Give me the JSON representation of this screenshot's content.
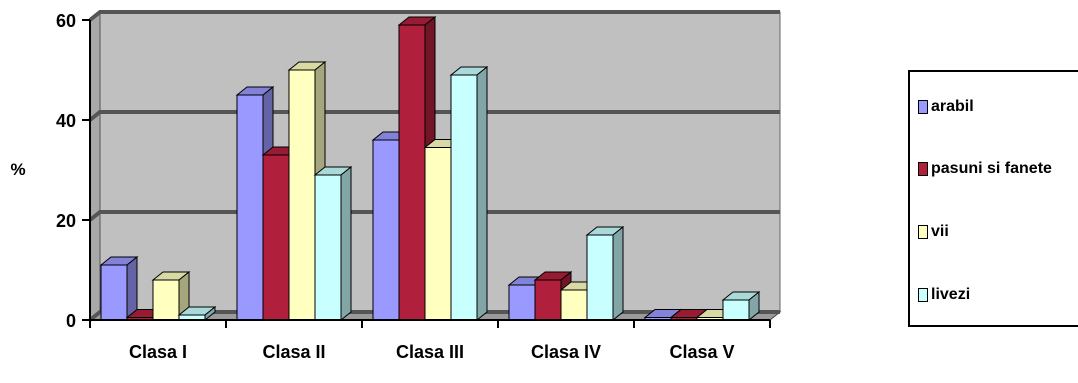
{
  "chart_data": {
    "type": "bar",
    "categories": [
      "Clasa I",
      "Clasa II",
      "Clasa III",
      "Clasa IV",
      "Clasa V"
    ],
    "series": [
      {
        "name": "arabil",
        "color": "#9999ff",
        "values": [
          11,
          45,
          36,
          7,
          0.5
        ]
      },
      {
        "name": "pasuni si fanete",
        "color": "#b0203c",
        "values": [
          0.5,
          33,
          59,
          8,
          0.5
        ]
      },
      {
        "name": "vii",
        "color": "#ffffc0",
        "values": [
          8,
          50,
          34.5,
          6,
          0.5
        ]
      },
      {
        "name": "livezi",
        "color": "#c8ffff",
        "values": [
          1,
          29,
          49,
          17,
          4
        ]
      }
    ],
    "title": "",
    "xlabel": "",
    "ylabel": "%",
    "ylim": [
      0,
      60
    ],
    "yticks": [
      0,
      20,
      40,
      60
    ],
    "grid": true,
    "plot_background": "#c0c0c0",
    "legend_position": "right"
  }
}
